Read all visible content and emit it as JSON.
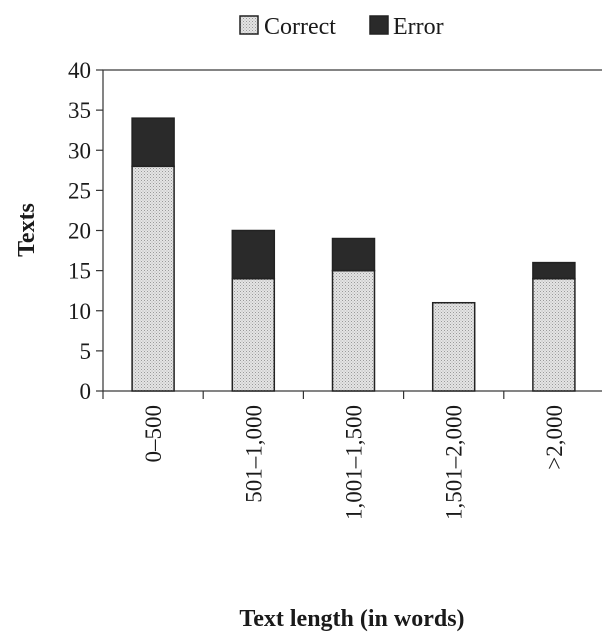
{
  "chart_data": {
    "type": "bar",
    "stacked": true,
    "categories": [
      "0–500",
      "501–1,000",
      "1,001–1,500",
      "1,501–2,000",
      ">2,000"
    ],
    "series": [
      {
        "name": "Correct",
        "values": [
          28,
          14,
          15,
          11,
          14
        ],
        "color": "#d9d9d9"
      },
      {
        "name": "Error",
        "values": [
          6,
          6,
          4,
          0,
          2
        ],
        "color": "#2a2a2a"
      }
    ],
    "ylabel": "Texts",
    "xlabel": "Text length (in words)",
    "ylim": [
      0,
      40
    ],
    "yticks": [
      0,
      5,
      10,
      15,
      20,
      25,
      30,
      35,
      40
    ],
    "grid": false,
    "legend_position": "top-center"
  }
}
